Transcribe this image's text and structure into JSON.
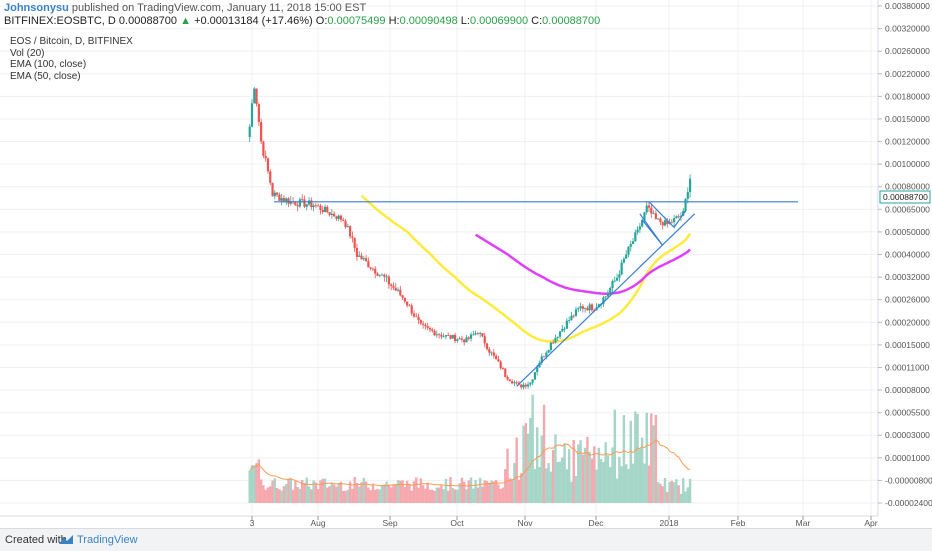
{
  "header": {
    "author": "Johnsonysu",
    "published": " published on TradingView.com, January 11, 2018 15:00 EST",
    "symbol": "BITFINEX:EOSBTC, D",
    "open_price": "0.00088700",
    "change": "+0.00013184 (+17.46%)",
    "o_label": "O:",
    "o": "0.00075499",
    "h_label": "H:",
    "h": "0.00090498",
    "l_label": "L:",
    "l": "0.00069900",
    "c_label": "C:",
    "c": "0.00088700"
  },
  "legend": {
    "title": "EOS / Bitcoin, D, BITFINEX",
    "vol": "Vol (20)",
    "ema100": "EMA (100, close)",
    "ema50": "EMA (50, close)"
  },
  "footer": {
    "created": "Created with",
    "brand": "TradingView"
  },
  "colors": {
    "up": "#26a69a",
    "down": "#ef5350",
    "vol_up": "#a5d6c8",
    "vol_down": "#f5a8ae",
    "ema50": "#ffeb3b",
    "ema100": "#e040fb",
    "vol_ma": "#ff9a52",
    "trendline": "#3a7dd4",
    "grid": "#eef0f3"
  },
  "chart_data": {
    "type": "candlestick",
    "price_axis_ticks": [
      "0.00380000",
      "0.00320000",
      "0.00260000",
      "0.00220000",
      "0.00180000",
      "0.00150000",
      "0.00120000",
      "0.00100000",
      "0.00080000",
      "0.00065000",
      "0.00050000",
      "0.00040000",
      "0.00032000",
      "0.00026000",
      "0.00020000",
      "0.00015000",
      "0.00011000",
      "0.00008000",
      "0.00005500",
      "0.00003000",
      "0.00001000",
      "-0.00000800",
      "-0.00002400"
    ],
    "last_price": "0.00088700",
    "time_axis_ticks": [
      "3",
      "Aug",
      "Sep",
      "Oct",
      "Nov",
      "Dec",
      "2018",
      "Feb",
      "Mar",
      "Apr"
    ],
    "legend_placement": "top-left",
    "series": [
      "Vol (20)",
      "EMA (100, close)",
      "EMA (50, close)"
    ],
    "price_path": [
      [
        "2017-07-02",
        0.0014
      ],
      [
        "2017-07-04",
        0.002
      ],
      [
        "2017-07-07",
        0.0012
      ],
      [
        "2017-07-12",
        0.00075
      ],
      [
        "2017-07-20",
        0.0007
      ],
      [
        "2017-07-30",
        0.00068
      ],
      [
        "2017-08-12",
        0.00058
      ],
      [
        "2017-08-18",
        0.0004
      ],
      [
        "2017-08-28",
        0.00033
      ],
      [
        "2017-09-08",
        0.00026
      ],
      [
        "2017-09-15",
        0.00019
      ],
      [
        "2017-09-25",
        0.00017
      ],
      [
        "2017-10-05",
        0.00016
      ],
      [
        "2017-10-10",
        0.00018
      ],
      [
        "2017-10-15",
        0.00014
      ],
      [
        "2017-10-22",
        0.0001
      ],
      [
        "2017-10-28",
        8.5e-05
      ],
      [
        "2017-11-02",
        9e-05
      ],
      [
        "2017-11-06",
        0.00012
      ],
      [
        "2017-11-12",
        0.00016
      ],
      [
        "2017-11-18",
        0.0002
      ],
      [
        "2017-11-24",
        0.00024
      ],
      [
        "2017-11-30",
        0.00024
      ],
      [
        "2017-12-05",
        0.00027
      ],
      [
        "2017-12-10",
        0.00032
      ],
      [
        "2017-12-14",
        0.0004
      ],
      [
        "2017-12-19",
        0.0005
      ],
      [
        "2017-12-23",
        0.00066
      ],
      [
        "2017-12-27",
        0.00058
      ],
      [
        "2018-01-01",
        0.00055
      ],
      [
        "2018-01-04",
        0.00058
      ],
      [
        "2018-01-08",
        0.00062
      ],
      [
        "2018-01-11",
        0.00088
      ]
    ],
    "resistance_level": 0.0007,
    "annotations": [
      "horizontal resistance line",
      "rising trendline from Oct low",
      "triangle / flag near Jan"
    ]
  }
}
